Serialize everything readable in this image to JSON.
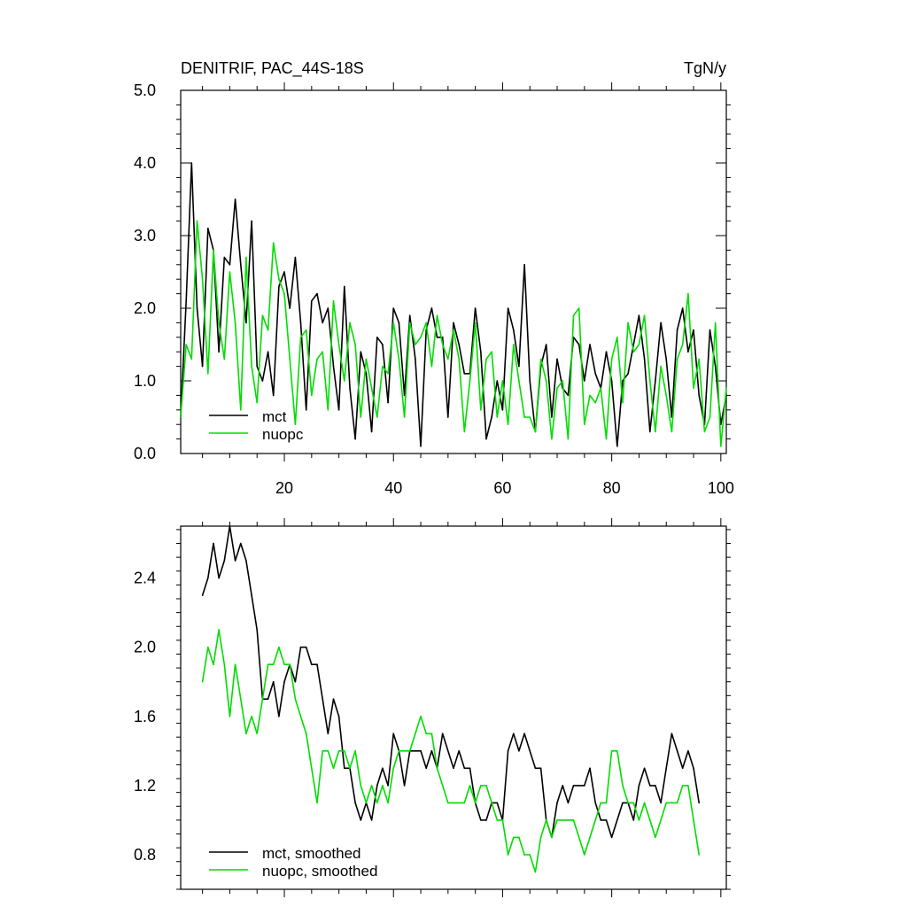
{
  "colors": {
    "mct": "#000000",
    "nuopc": "#00dd00"
  },
  "chart_data": [
    {
      "type": "line",
      "title": "DENITRIF, PAC_44S-18S",
      "units": "TgN/y",
      "xlim": [
        1,
        101
      ],
      "ylim": [
        0,
        5
      ],
      "x_ticks": [
        20,
        40,
        60,
        80,
        100
      ],
      "x_tick_labels": [
        "20",
        "40",
        "60",
        "80",
        "100"
      ],
      "y_ticks": [
        0,
        1,
        2,
        3,
        4,
        5
      ],
      "y_tick_labels": [
        "0.0",
        "1.0",
        "2.0",
        "3.0",
        "4.0",
        "5.0"
      ],
      "legend": "bottom-left",
      "x_start": 1,
      "series": [
        {
          "name": "mct",
          "values": [
            0.5,
            2.1,
            4.0,
            2.0,
            1.2,
            3.1,
            2.8,
            1.4,
            2.7,
            2.6,
            3.5,
            2.6,
            1.8,
            3.2,
            1.2,
            1.0,
            1.4,
            0.8,
            2.3,
            2.5,
            2.0,
            2.7,
            1.8,
            0.6,
            2.1,
            2.2,
            1.8,
            2.0,
            1.2,
            0.6,
            2.3,
            0.9,
            0.2,
            1.4,
            1.1,
            0.3,
            1.6,
            1.5,
            0.7,
            2.0,
            1.8,
            0.8,
            1.9,
            1.3,
            0.1,
            1.7,
            2.0,
            1.6,
            1.6,
            0.5,
            1.8,
            1.5,
            1.1,
            1.1,
            2.0,
            1.4,
            0.2,
            0.5,
            1.0,
            0.6,
            2.0,
            1.7,
            1.2,
            2.6,
            1.0,
            0.3,
            1.2,
            1.5,
            0.5,
            1.3,
            0.9,
            0.8,
            1.6,
            1.5,
            1.0,
            1.5,
            1.1,
            0.9,
            1.4,
            1.0,
            0.1,
            1.0,
            1.1,
            1.5,
            1.9,
            1.3,
            0.3,
            1.0,
            1.8,
            1.3,
            0.5,
            1.7,
            2.0,
            1.4,
            1.7,
            0.8,
            0.4,
            1.7,
            1.2,
            0.4,
            0.8
          ]
        },
        {
          "name": "nuopc",
          "values": [
            0.5,
            1.5,
            1.3,
            3.2,
            2.4,
            1.1,
            2.8,
            1.8,
            1.3,
            2.5,
            1.8,
            0.6,
            2.7,
            1.2,
            0.7,
            1.9,
            1.7,
            2.9,
            2.4,
            2.2,
            1.3,
            0.4,
            1.6,
            1.7,
            0.8,
            1.3,
            1.4,
            0.6,
            2.1,
            1.5,
            1.0,
            1.8,
            1.5,
            0.5,
            1.3,
            0.9,
            0.5,
            1.2,
            1.1,
            1.8,
            1.3,
            0.5,
            1.8,
            1.5,
            1.6,
            1.8,
            1.2,
            1.9,
            1.5,
            1.3,
            1.7,
            1.3,
            0.3,
            1.0,
            1.8,
            0.6,
            1.3,
            1.4,
            0.5,
            1.0,
            0.4,
            1.5,
            1.0,
            0.5,
            0.5,
            0.3,
            1.3,
            1.0,
            0.2,
            0.9,
            1.0,
            0.2,
            1.9,
            2.0,
            0.4,
            0.8,
            0.7,
            0.9,
            0.2,
            1.3,
            1.6,
            0.7,
            1.8,
            1.4,
            1.5,
            1.9,
            1.0,
            0.3,
            1.2,
            0.8,
            0.3,
            1.3,
            1.5,
            2.2,
            0.9,
            1.3,
            0.3,
            0.5,
            1.8,
            0.1,
            0.9
          ]
        }
      ]
    },
    {
      "type": "line",
      "xlim": [
        1,
        101
      ],
      "ylim": [
        0.6,
        2.7
      ],
      "x_ticks": [
        20,
        40,
        60,
        80,
        100
      ],
      "y_ticks": [
        0.8,
        1.2,
        1.6,
        2.0,
        2.4
      ],
      "y_tick_labels": [
        "0.8",
        "1.2",
        "1.6",
        "2.0",
        "2.4"
      ],
      "legend": "bottom-left",
      "x_start": 5,
      "series": [
        {
          "name": "mct, smoothed",
          "values": [
            2.3,
            2.4,
            2.6,
            2.4,
            2.5,
            2.7,
            2.5,
            2.6,
            2.5,
            2.3,
            2.1,
            1.7,
            1.7,
            1.8,
            1.6,
            1.8,
            1.9,
            1.8,
            2.0,
            2.0,
            1.9,
            1.9,
            1.7,
            1.5,
            1.7,
            1.6,
            1.3,
            1.3,
            1.1,
            1.0,
            1.1,
            1.0,
            1.2,
            1.3,
            1.2,
            1.5,
            1.4,
            1.2,
            1.4,
            1.4,
            1.4,
            1.3,
            1.4,
            1.3,
            1.5,
            1.4,
            1.3,
            1.4,
            1.3,
            1.3,
            1.1,
            1.0,
            1.0,
            1.1,
            1.1,
            1.0,
            1.4,
            1.5,
            1.4,
            1.5,
            1.4,
            1.3,
            1.3,
            1.0,
            0.9,
            1.1,
            1.2,
            1.1,
            1.2,
            1.2,
            1.2,
            1.3,
            1.1,
            1.0,
            1.0,
            0.9,
            1.0,
            1.1,
            1.1,
            1.0,
            1.2,
            1.3,
            1.2,
            1.2,
            1.1,
            1.3,
            1.5,
            1.4,
            1.3,
            1.4,
            1.3,
            1.1
          ]
        },
        {
          "name": "nuopc, smoothed",
          "values": [
            1.8,
            2.0,
            1.9,
            2.1,
            1.9,
            1.6,
            1.9,
            1.7,
            1.5,
            1.6,
            1.5,
            1.7,
            1.9,
            1.9,
            2.0,
            1.9,
            1.9,
            1.7,
            1.6,
            1.5,
            1.3,
            1.1,
            1.4,
            1.4,
            1.3,
            1.4,
            1.4,
            1.3,
            1.4,
            1.2,
            1.1,
            1.2,
            1.1,
            1.2,
            1.1,
            1.3,
            1.4,
            1.4,
            1.4,
            1.5,
            1.6,
            1.5,
            1.5,
            1.3,
            1.2,
            1.1,
            1.1,
            1.1,
            1.1,
            1.2,
            1.1,
            1.2,
            1.2,
            1.1,
            1.0,
            1.0,
            0.8,
            0.9,
            0.9,
            0.8,
            0.8,
            0.7,
            0.9,
            1.0,
            0.9,
            1.0,
            1.0,
            1.0,
            1.0,
            0.9,
            0.8,
            0.9,
            1.0,
            1.1,
            1.1,
            1.4,
            1.4,
            1.2,
            1.1,
            1.1,
            1.0,
            1.1,
            1.0,
            0.9,
            1.0,
            1.1,
            1.1,
            1.1,
            1.2,
            1.2,
            1.0,
            0.8
          ]
        }
      ]
    }
  ]
}
